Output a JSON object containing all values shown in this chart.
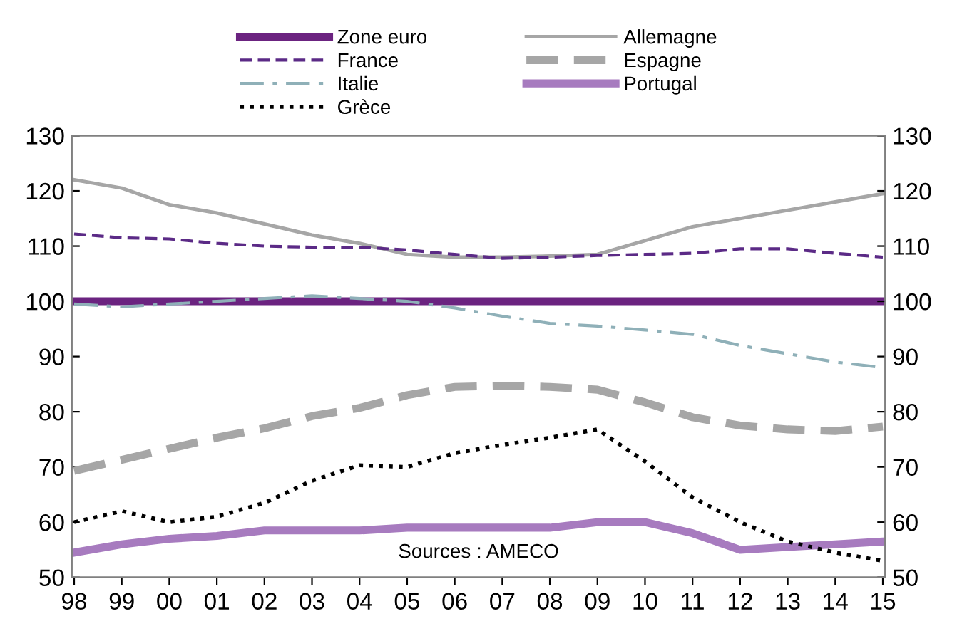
{
  "chart_data": {
    "type": "line",
    "categories": [
      "98",
      "99",
      "00",
      "01",
      "02",
      "03",
      "04",
      "05",
      "06",
      "07",
      "08",
      "09",
      "10",
      "11",
      "12",
      "13",
      "14",
      "15"
    ],
    "series": [
      {
        "name": "Zone euro",
        "color": "#6b2380",
        "line_style": "solid",
        "values": [
          100,
          100,
          100,
          100,
          100,
          100,
          100,
          100,
          100,
          100,
          100,
          100,
          100,
          100,
          100,
          100,
          100,
          100
        ]
      },
      {
        "name": "Allemagne",
        "color": "#a6a6a6",
        "line_style": "solid",
        "values": [
          122,
          120.5,
          117.5,
          116,
          114,
          112,
          110.5,
          108.5,
          108,
          108,
          108.2,
          108.5,
          111,
          113.5,
          115,
          116.5,
          118,
          119.5
        ]
      },
      {
        "name": "France",
        "color": "#5b2a86",
        "line_style": "dashed",
        "values": [
          112.2,
          111.5,
          111.3,
          110.5,
          110,
          109.8,
          109.8,
          109.3,
          108.5,
          107.8,
          108,
          108.3,
          108.5,
          108.7,
          109.5,
          109.5,
          108.7,
          108
        ]
      },
      {
        "name": "Espagne",
        "color": "#a6a6a6",
        "line_style": "dashed",
        "values": [
          69.3,
          71.3,
          73.3,
          75.3,
          77,
          79.2,
          80.7,
          83,
          84.5,
          84.7,
          84.5,
          84,
          81.7,
          79,
          77.5,
          76.8,
          76.5,
          77.3
        ]
      },
      {
        "name": "Italie",
        "color": "#8fb0b8",
        "line_style": "dashdot",
        "values": [
          99.5,
          99,
          99.5,
          100,
          100.5,
          101,
          100.5,
          100,
          98.8,
          97.3,
          96,
          95.5,
          94.8,
          94,
          92,
          90.5,
          89,
          88
        ]
      },
      {
        "name": "Portugal",
        "color": "#a77bbf",
        "line_style": "solid",
        "values": [
          54.5,
          56,
          57,
          57.5,
          58.5,
          58.5,
          58.5,
          59,
          59,
          59,
          59,
          60,
          60,
          58,
          55,
          55.5,
          56,
          56.5
        ]
      },
      {
        "name": "Grèce",
        "color": "#000000",
        "line_style": "dotted",
        "values": [
          60,
          62,
          60,
          61,
          63.5,
          67.5,
          70.3,
          70,
          72.5,
          74,
          75.3,
          76.8,
          71,
          64.5,
          60,
          56.5,
          54.5,
          53
        ]
      }
    ],
    "ylim": [
      50,
      130
    ],
    "yticks": [
      50,
      60,
      70,
      80,
      90,
      100,
      110,
      120,
      130
    ],
    "y2lim": [
      50,
      130
    ],
    "y2ticks": [
      50,
      60,
      70,
      80,
      90,
      100,
      110,
      120,
      130
    ],
    "legend": "top",
    "grid": false,
    "annotations": [
      "Sources : AMECO"
    ]
  }
}
